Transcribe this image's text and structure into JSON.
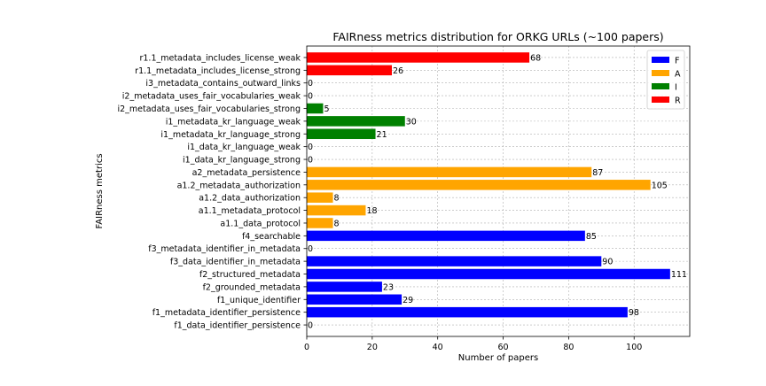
{
  "chart_data": {
    "type": "bar",
    "orientation": "horizontal",
    "title": "FAIRness metrics distribution for ORKG URLs (~100 papers)",
    "xlabel": "Number of papers",
    "ylabel": "FAIRness metrics",
    "xlim": [
      0,
      117
    ],
    "xticks": [
      0,
      20,
      40,
      60,
      80,
      100
    ],
    "grid": true,
    "legend_position": "top-right",
    "categories": [
      "f1_data_identifier_persistence",
      "f1_metadata_identifier_persistence",
      "f1_unique_identifier",
      "f2_grounded_metadata",
      "f2_structured_metadata",
      "f3_data_identifier_in_metadata",
      "f3_metadata_identifier_in_metadata",
      "f4_searchable",
      "a1.1_data_protocol",
      "a1.1_metadata_protocol",
      "a1.2_data_authorization",
      "a1.2_metadata_authorization",
      "a2_metadata_persistence",
      "i1_data_kr_language_strong",
      "i1_data_kr_language_weak",
      "i1_metadata_kr_language_strong",
      "i1_metadata_kr_language_weak",
      "i2_metadata_uses_fair_vocabularies_strong",
      "i2_metadata_uses_fair_vocabularies_weak",
      "i3_metadata_contains_outward_links",
      "r1.1_metadata_includes_license_strong",
      "r1.1_metadata_includes_license_weak"
    ],
    "values": [
      0,
      98,
      29,
      23,
      111,
      90,
      0,
      85,
      8,
      18,
      8,
      105,
      87,
      0,
      0,
      21,
      30,
      5,
      0,
      0,
      26,
      68
    ],
    "groups": [
      "F",
      "F",
      "F",
      "F",
      "F",
      "F",
      "F",
      "F",
      "A",
      "A",
      "A",
      "A",
      "A",
      "I",
      "I",
      "I",
      "I",
      "I",
      "I",
      "I",
      "R",
      "R"
    ],
    "series": [
      {
        "name": "F",
        "color": "#0000ff"
      },
      {
        "name": "A",
        "color": "#ffa500"
      },
      {
        "name": "I",
        "color": "#008000"
      },
      {
        "name": "R",
        "color": "#ff0000"
      }
    ]
  }
}
